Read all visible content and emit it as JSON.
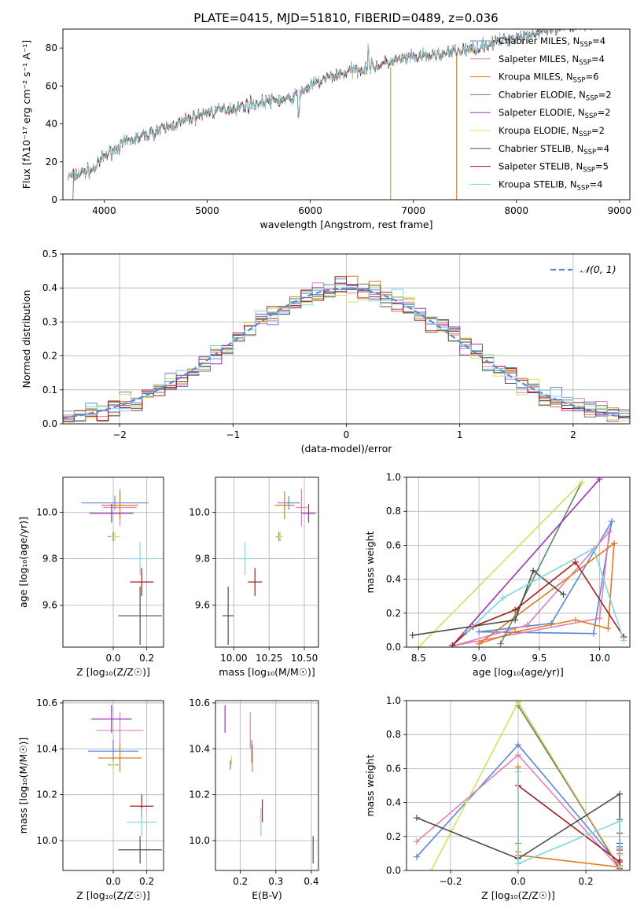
{
  "figure_title": "PLATE=0415, MJD=51810, FIBERID=0489, z=0.036",
  "models": [
    {
      "label": "Chabrier MILES, N",
      "sub": "SSP",
      "suffix": "=4",
      "color": "#5b87d6"
    },
    {
      "label": "Salpeter MILES, N",
      "sub": "SSP",
      "suffix": "=4",
      "color": "#e07fb8"
    },
    {
      "label": "Kroupa MILES, N",
      "sub": "SSP",
      "suffix": "=6",
      "color": "#e07a1f"
    },
    {
      "label": "Chabrier ELODIE, N",
      "sub": "SSP",
      "suffix": "=2",
      "color": "#5e8a5e"
    },
    {
      "label": "Salpeter ELODIE, N",
      "sub": "SSP",
      "suffix": "=2",
      "color": "#9b30b0"
    },
    {
      "label": "Kroupa ELODIE, N",
      "sub": "SSP",
      "suffix": "=2",
      "color": "#cde35a"
    },
    {
      "label": "Chabrier STELIB, N",
      "sub": "SSP",
      "suffix": "=4",
      "color": "#4d4d4d"
    },
    {
      "label": "Salpeter STELIB, N",
      "sub": "SSP",
      "suffix": "=5",
      "color": "#a51c1c"
    },
    {
      "label": "Kroupa STELIB, N",
      "sub": "SSP",
      "suffix": "=4",
      "color": "#7fd6e0"
    }
  ],
  "chart_data": [
    {
      "type": "line",
      "id": "spectrum",
      "xlabel": "wavelength [Angstrom, rest frame]",
      "ylabel": "Flux [fλ10⁻¹⁷ erg cm⁻² s⁻¹ A⁻¹]",
      "xlim": [
        3600,
        9100
      ],
      "ylim": [
        0,
        90
      ],
      "xticks": [
        4000,
        5000,
        6000,
        7000,
        8000,
        9000
      ],
      "yticks": [
        0,
        20,
        40,
        60,
        80
      ],
      "grid": false,
      "legend": "upper right",
      "trend_x": [
        3650,
        3900,
        4000,
        4200,
        4400,
        4600,
        4800,
        5000,
        5200,
        5400,
        5600,
        5800,
        6000,
        6200,
        6400,
        6600,
        6800,
        7000,
        7200,
        7400,
        7600,
        7800,
        8000,
        8200,
        8400,
        8600,
        8750
      ],
      "trend_y": [
        12,
        16,
        23,
        30,
        34,
        38,
        42,
        46,
        48,
        50,
        52,
        53,
        60,
        65,
        68,
        70,
        73,
        75,
        76,
        78,
        80,
        83,
        86,
        88,
        90,
        92,
        94
      ]
    },
    {
      "type": "line",
      "id": "residual-histogram",
      "xlabel": "(data-model)/error",
      "ylabel": "Normed distribution",
      "xlim": [
        -2.5,
        2.5
      ],
      "ylim": [
        0,
        0.5
      ],
      "xticks": [
        -2,
        -1,
        0,
        1,
        2
      ],
      "yticks": [
        0.0,
        0.1,
        0.2,
        0.3,
        0.4,
        0.5
      ],
      "grid": true,
      "legend": "upper right",
      "reference_label": "𝒩(0, 1)",
      "reference_color": "#5b87d6"
    },
    {
      "type": "scatter",
      "id": "age-vs-metallicity",
      "xlabel": "Z [log₁₀(Z/Z☉)]",
      "ylabel": "age  [log₁₀(age/yr)]",
      "xlim": [
        -0.3,
        0.3
      ],
      "ylim": [
        9.42,
        10.15
      ],
      "xticks": [
        0.0,
        0.2
      ],
      "yticks": [
        9.6,
        9.8,
        10.0
      ],
      "grid": true,
      "points": [
        {
          "x": 0.01,
          "y": 10.04,
          "ex": 0.2,
          "ey": 0.03
        },
        {
          "x": 0.04,
          "y": 10.02,
          "ex": 0.1,
          "ey": 0.08
        },
        {
          "x": 0.04,
          "y": 10.03,
          "ex": 0.11,
          "ey": 0.06
        },
        {
          "x": 0.0,
          "y": 9.895,
          "ex": 0.03,
          "ey": 0.02
        },
        {
          "x": -0.01,
          "y": 9.995,
          "ex": 0.13,
          "ey": 0.04
        },
        {
          "x": 0.01,
          "y": 9.895,
          "ex": 0.03,
          "ey": 0.02
        },
        {
          "x": 0.16,
          "y": 9.555,
          "ex": 0.13,
          "ey": 0.125
        },
        {
          "x": 0.17,
          "y": 9.7,
          "ex": 0.07,
          "ey": 0.06
        },
        {
          "x": 0.16,
          "y": 9.8,
          "ex": 0.1,
          "ey": 0.07
        }
      ]
    },
    {
      "type": "scatter",
      "id": "age-vs-mass",
      "xlabel": "mass [log₁₀(M/M☉)]",
      "ylabel": "",
      "xlim": [
        9.87,
        10.6
      ],
      "ylim": [
        9.42,
        10.15
      ],
      "xticks": [
        10.0,
        10.25,
        10.5
      ],
      "yticks": [
        9.6,
        9.8,
        10.0
      ],
      "grid": true,
      "points": [
        {
          "x": 10.39,
          "y": 10.04,
          "ex": 0.08,
          "ey": 0.03
        },
        {
          "x": 10.48,
          "y": 10.02,
          "ex": 0.04,
          "ey": 0.08
        },
        {
          "x": 10.36,
          "y": 10.03,
          "ex": 0.07,
          "ey": 0.06
        },
        {
          "x": 10.32,
          "y": 9.895,
          "ex": 0.02,
          "ey": 0.02
        },
        {
          "x": 10.53,
          "y": 9.995,
          "ex": 0.05,
          "ey": 0.04
        },
        {
          "x": 10.33,
          "y": 9.895,
          "ex": 0.02,
          "ey": 0.02
        },
        {
          "x": 9.96,
          "y": 9.555,
          "ex": 0.04,
          "ey": 0.125
        },
        {
          "x": 10.15,
          "y": 9.7,
          "ex": 0.05,
          "ey": 0.06
        },
        {
          "x": 10.08,
          "y": 9.8,
          "ex": 0.06,
          "ey": 0.07
        }
      ]
    },
    {
      "type": "line",
      "id": "mass-weight-vs-age",
      "xlabel": "age  [log₁₀(age/yr)]",
      "ylabel": "mass weight",
      "xlim": [
        8.4,
        10.25
      ],
      "ylim": [
        0,
        1.0
      ],
      "xticks": [
        8.5,
        9.0,
        9.5,
        10.0
      ],
      "yticks": [
        0.0,
        0.2,
        0.4,
        0.6,
        0.8,
        1.0
      ],
      "grid": true,
      "series": [
        {
          "x": [
            10.1,
            9.95,
            9.0,
            9.6,
            10.1
          ],
          "y": [
            0.74,
            0.08,
            0.09,
            0.14,
            0.74
          ]
        },
        {
          "x": [
            10.08,
            10.0,
            8.8,
            9.4,
            10.08
          ],
          "y": [
            0.68,
            0.17,
            0.01,
            0.13,
            0.68
          ]
        },
        {
          "x": [
            10.12,
            10.07,
            9.8,
            9.3,
            9.0,
            10.12
          ],
          "y": [
            0.61,
            0.11,
            0.16,
            0.09,
            0.02,
            0.61
          ]
        },
        {
          "x": [
            9.85,
            9.18
          ],
          "y": [
            0.97,
            0.02
          ]
        },
        {
          "x": [
            10.0,
            8.78
          ],
          "y": [
            0.99,
            0.01
          ]
        },
        {
          "x": [
            9.85,
            8.5
          ],
          "y": [
            0.97,
            0.0
          ]
        },
        {
          "x": [
            8.45,
            9.3,
            9.45,
            9.7
          ],
          "y": [
            0.07,
            0.16,
            0.45,
            0.31
          ]
        },
        {
          "x": [
            10.2,
            9.8,
            9.3,
            8.95,
            8.78
          ],
          "y": [
            0.06,
            0.5,
            0.22,
            0.12,
            0.01
          ]
        },
        {
          "x": [
            10.2,
            9.95,
            9.2,
            8.9
          ],
          "y": [
            0.04,
            0.58,
            0.29,
            0.09
          ]
        }
      ]
    },
    {
      "type": "scatter",
      "id": "mass-vs-metallicity",
      "xlabel": "Z [log₁₀(Z/Z☉)]",
      "ylabel": "mass [log₁₀(M/M☉)]",
      "xlim": [
        -0.3,
        0.3
      ],
      "ylim": [
        9.87,
        10.61
      ],
      "xticks": [
        0.0,
        0.2
      ],
      "yticks": [
        10.0,
        10.2,
        10.4,
        10.6
      ],
      "grid": true,
      "points": [
        {
          "x": 0.0,
          "y": 10.39,
          "ex": 0.15,
          "ey": 0.05
        },
        {
          "x": 0.04,
          "y": 10.48,
          "ex": 0.14,
          "ey": 0.08
        },
        {
          "x": 0.04,
          "y": 10.36,
          "ex": 0.13,
          "ey": 0.06
        },
        {
          "x": 0.0,
          "y": 10.33,
          "ex": 0.03,
          "ey": 0.02
        },
        {
          "x": -0.01,
          "y": 10.53,
          "ex": 0.12,
          "ey": 0.06
        },
        {
          "x": 0.0,
          "y": 10.33,
          "ex": 0.02,
          "ey": 0.02
        },
        {
          "x": 0.16,
          "y": 9.96,
          "ex": 0.13,
          "ey": 0.06
        },
        {
          "x": 0.17,
          "y": 10.15,
          "ex": 0.07,
          "ey": 0.05
        },
        {
          "x": 0.17,
          "y": 10.08,
          "ex": 0.09,
          "ey": 0.06
        }
      ]
    },
    {
      "type": "scatter",
      "id": "mass-vs-extinction",
      "xlabel": "E(B-V)",
      "ylabel": "",
      "xlim": [
        0.13,
        0.42
      ],
      "ylim": [
        9.87,
        10.61
      ],
      "xticks": [
        0.2,
        0.3,
        0.4
      ],
      "yticks": [
        10.0,
        10.2,
        10.4,
        10.6
      ],
      "grid": true,
      "points": [
        {
          "x": 0.232,
          "y": 10.39,
          "ex": 0,
          "ey": 0.05
        },
        {
          "x": 0.228,
          "y": 10.48,
          "ex": 0,
          "ey": 0.08
        },
        {
          "x": 0.234,
          "y": 10.36,
          "ex": 0,
          "ey": 0.06
        },
        {
          "x": 0.172,
          "y": 10.33,
          "ex": 0,
          "ey": 0.02
        },
        {
          "x": 0.157,
          "y": 10.53,
          "ex": 0,
          "ey": 0.06
        },
        {
          "x": 0.175,
          "y": 10.35,
          "ex": 0,
          "ey": 0.02
        },
        {
          "x": 0.405,
          "y": 9.96,
          "ex": 0,
          "ey": 0.06
        },
        {
          "x": 0.262,
          "y": 10.13,
          "ex": 0,
          "ey": 0.05
        },
        {
          "x": 0.258,
          "y": 10.08,
          "ex": 0,
          "ey": 0.06
        }
      ]
    },
    {
      "type": "line",
      "id": "mass-weight-vs-metallicity",
      "xlabel": "Z [log₁₀(Z/Z☉)]",
      "ylabel": "mass weight",
      "xlim": [
        -0.33,
        0.33
      ],
      "ylim": [
        0,
        1.0
      ],
      "xticks": [
        -0.2,
        0.0,
        0.2
      ],
      "yticks": [
        0.0,
        0.2,
        0.4,
        0.6,
        0.8,
        1.0
      ],
      "grid": true,
      "series": [
        {
          "x": [
            -0.3,
            0.0,
            0.3,
            0.3
          ],
          "y": [
            0.08,
            0.74,
            0.03,
            0.14
          ]
        },
        {
          "x": [
            -0.3,
            0.0,
            0.3,
            0.3
          ],
          "y": [
            0.17,
            0.68,
            0.01,
            0.13
          ]
        },
        {
          "x": [
            0.0,
            0.0,
            0.0,
            0.0,
            0.3,
            0.3
          ],
          "y": [
            0.61,
            0.16,
            0.11,
            0.09,
            0.02,
            0.1
          ]
        },
        {
          "x": [
            0.0,
            0.3
          ],
          "y": [
            0.97,
            0.02
          ]
        },
        {
          "x": [
            0.0,
            0.3
          ],
          "y": [
            0.99,
            0.01
          ]
        },
        {
          "x": [
            -0.27,
            0.0,
            0.3
          ],
          "y": [
            -0.05,
            0.99,
            0.02
          ]
        },
        {
          "x": [
            -0.3,
            0.0,
            0.3,
            0.3,
            0.3
          ],
          "y": [
            0.31,
            0.07,
            0.45,
            0.16,
            0.3
          ]
        },
        {
          "x": [
            0.0,
            0.3,
            0.3,
            0.3,
            0.3
          ],
          "y": [
            0.5,
            0.05,
            0.22,
            0.12,
            0.06
          ]
        },
        {
          "x": [
            0.0,
            0.0,
            0.3,
            0.3
          ],
          "y": [
            0.58,
            0.04,
            0.29,
            0.09
          ]
        }
      ]
    }
  ]
}
